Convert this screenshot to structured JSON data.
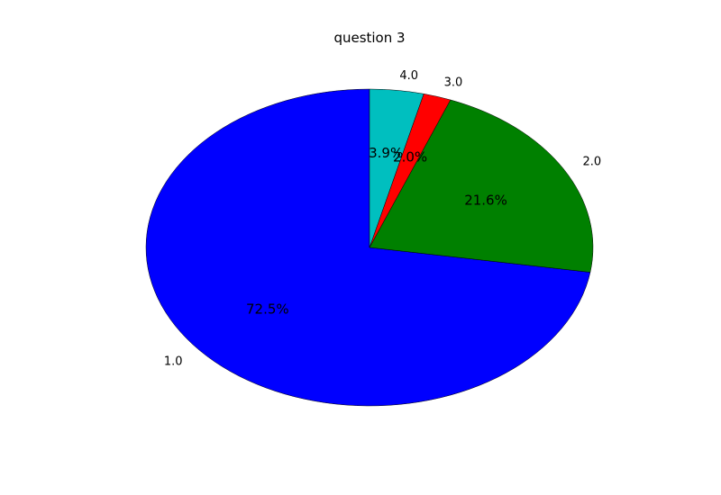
{
  "chart_data": {
    "type": "pie",
    "title": "question 3",
    "slices": [
      {
        "label": "1.0",
        "value": 72.5,
        "pct_label": "72.5%",
        "color": "#0000ff"
      },
      {
        "label": "2.0",
        "value": 21.6,
        "pct_label": "21.6%",
        "color": "#008000"
      },
      {
        "label": "3.0",
        "value": 2.0,
        "pct_label": "2.0%",
        "color": "#ff0000"
      },
      {
        "label": "4.0",
        "value": 3.9,
        "pct_label": "3.9%",
        "color": "#00bfbf"
      }
    ],
    "start_angle_deg": 90,
    "direction": "counterclockwise"
  }
}
